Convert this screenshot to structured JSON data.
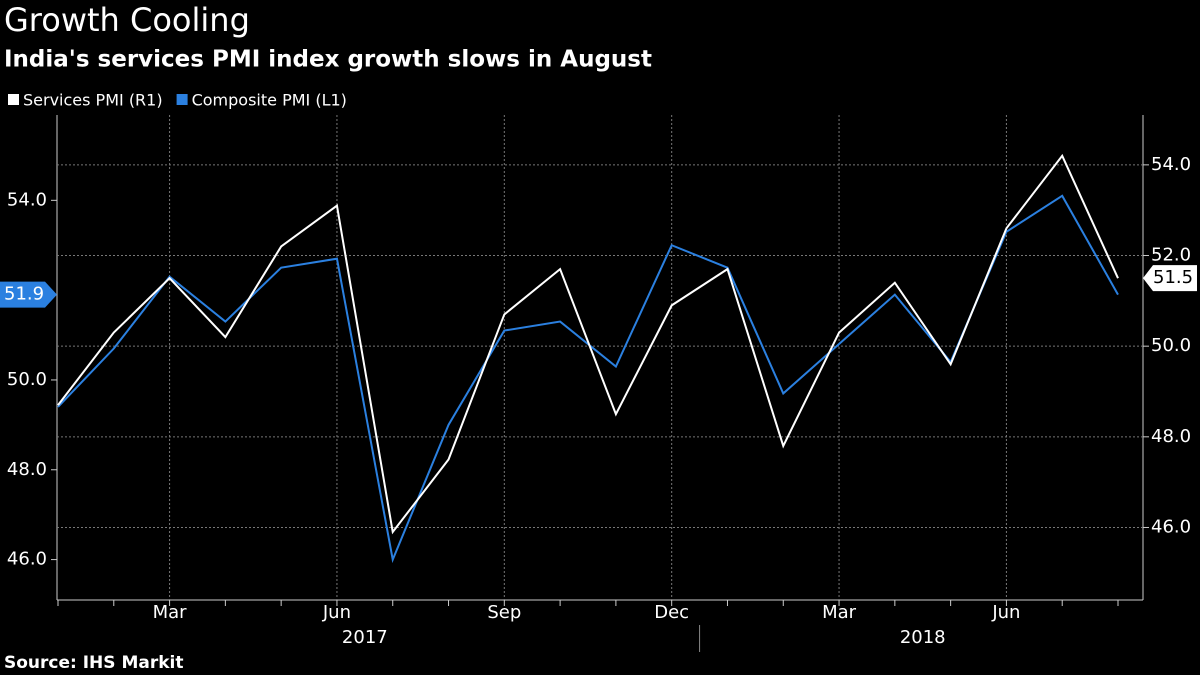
{
  "chart_data": {
    "type": "line",
    "title": "Growth Cooling",
    "subtitle": "India's services PMI index growth slows in August",
    "source": "Source: IHS Markit",
    "categories": [
      null,
      null,
      "Mar",
      null,
      null,
      "Jun",
      null,
      null,
      "Sep",
      null,
      null,
      "Dec",
      null,
      null,
      "Mar",
      null,
      null,
      "Jun",
      null,
      null
    ],
    "x_groups": [
      {
        "label": "2017",
        "count": 12
      },
      {
        "label": "2018",
        "count": 8
      }
    ],
    "series": [
      {
        "name": "Services PMI (R1)",
        "color": "#ffffff",
        "axis": "y2",
        "values": [
          48.7,
          50.3,
          51.5,
          50.2,
          52.2,
          53.1,
          45.9,
          47.5,
          50.7,
          51.7,
          48.5,
          50.9,
          51.7,
          47.8,
          50.3,
          51.4,
          49.6,
          52.6,
          54.2,
          51.5
        ]
      },
      {
        "name": "Composite PMI (L1)",
        "color": "#2b80e0",
        "values": [
          49.4,
          50.7,
          52.3,
          51.3,
          52.5,
          52.7,
          46.0,
          49.0,
          51.1,
          51.3,
          50.3,
          53.0,
          52.5,
          49.7,
          50.8,
          51.9,
          50.4,
          53.3,
          54.1,
          51.9
        ]
      }
    ],
    "ylim": [
      45.1,
      55.9
    ],
    "yticks": [
      {
        "value": 46,
        "label": "46.0"
      },
      {
        "value": 48,
        "label": "48.0"
      },
      {
        "value": 50,
        "label": "50.0"
      },
      {
        "value": 54,
        "label": "54.0"
      }
    ],
    "y2lim": [
      44.4,
      55.1
    ],
    "y2ticks": [
      {
        "value": 46,
        "label": "46.0"
      },
      {
        "value": 48,
        "label": "48.0"
      },
      {
        "value": 50,
        "label": "50.0"
      },
      {
        "value": 52,
        "label": "52.0"
      },
      {
        "value": 54,
        "label": "54.0"
      }
    ],
    "grid": true
  }
}
